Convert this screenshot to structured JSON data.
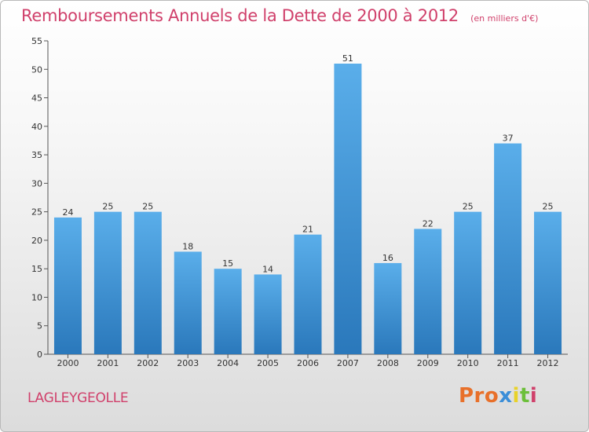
{
  "title": "Remboursements Annuels de la Dette de 2000 à 2012",
  "unit": "(en milliers d'€)",
  "commune": "LAGLEYGEOLLE",
  "logo": {
    "p1": "Pro",
    "p2": "x",
    "p3": "i",
    "p4": "t",
    "p5": "i"
  },
  "colors": {
    "title": "#d0406b",
    "bar_light": "#5aaeea",
    "bar_dark": "#2a78bb"
  },
  "chart_data": {
    "type": "bar",
    "categories": [
      "2000",
      "2001",
      "2002",
      "2003",
      "2004",
      "2005",
      "2006",
      "2007",
      "2008",
      "2009",
      "2010",
      "2011",
      "2012"
    ],
    "values": [
      24,
      25,
      25,
      18,
      15,
      14,
      21,
      51,
      16,
      22,
      25,
      37,
      25
    ],
    "ylim": [
      0,
      55
    ],
    "yticks": [
      0,
      5,
      10,
      15,
      20,
      25,
      30,
      35,
      40,
      45,
      50,
      55
    ],
    "grid": false
  }
}
